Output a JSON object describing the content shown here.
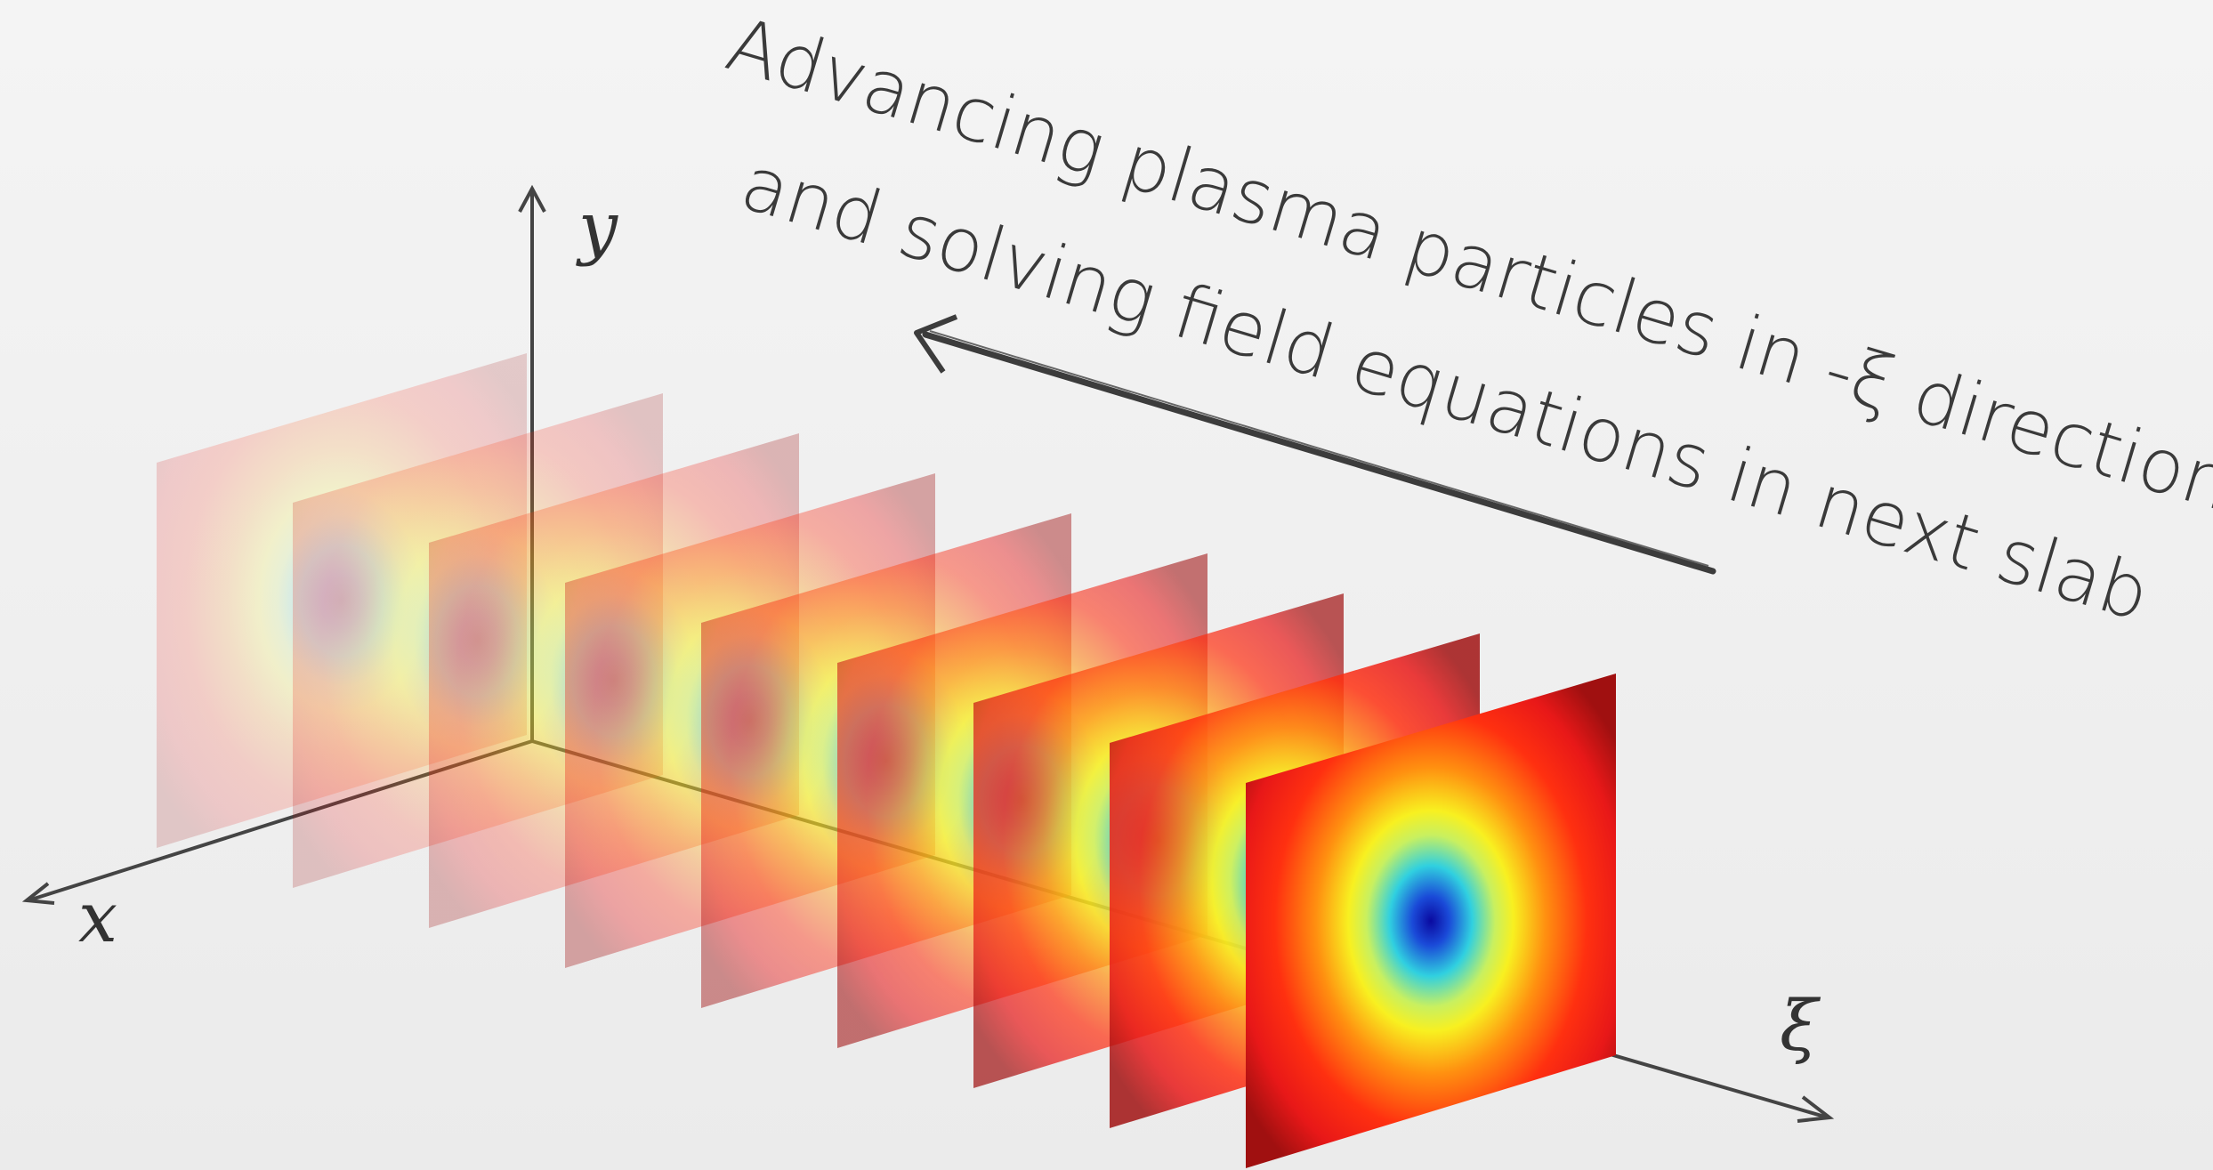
{
  "annotation": {
    "line1": "Advancing plasma particles in -ξ  direction",
    "line2": "and solving field equations in next slab"
  },
  "axes": {
    "y": "y",
    "x": "x",
    "xi": "ξ"
  }
}
